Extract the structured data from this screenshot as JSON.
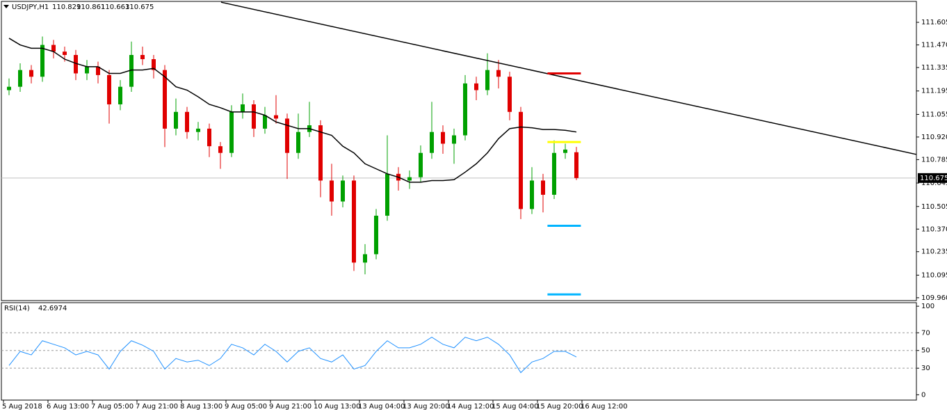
{
  "chart_data": {
    "type": "candlestick",
    "title": "USDJPY,H1",
    "up_color": "#00a000",
    "down_color": "#e00000",
    "candles": [
      [
        111.2,
        111.27,
        111.17,
        111.22
      ],
      [
        111.22,
        111.36,
        111.19,
        111.32
      ],
      [
        111.32,
        111.35,
        111.24,
        111.28
      ],
      [
        111.28,
        111.52,
        111.25,
        111.47
      ],
      [
        111.47,
        111.5,
        111.39,
        111.43
      ],
      [
        111.43,
        111.46,
        111.37,
        111.41
      ],
      [
        111.41,
        111.44,
        111.26,
        111.3
      ],
      [
        111.3,
        111.38,
        111.26,
        111.34
      ],
      [
        111.34,
        111.37,
        111.24,
        111.29
      ],
      [
        111.29,
        111.32,
        111.0,
        111.115
      ],
      [
        111.115,
        111.26,
        111.08,
        111.22
      ],
      [
        111.22,
        111.49,
        111.19,
        111.41
      ],
      [
        111.41,
        111.46,
        111.35,
        111.385
      ],
      [
        111.385,
        111.41,
        111.27,
        111.32
      ],
      [
        111.32,
        111.35,
        110.86,
        110.97
      ],
      [
        110.97,
        111.15,
        110.93,
        111.07
      ],
      [
        111.07,
        111.1,
        110.91,
        110.95
      ],
      [
        110.95,
        111.01,
        110.9,
        110.97
      ],
      [
        110.97,
        111.0,
        110.8,
        110.865
      ],
      [
        110.865,
        110.89,
        110.73,
        110.825
      ],
      [
        110.825,
        111.11,
        110.8,
        111.07
      ],
      [
        111.07,
        111.18,
        111.03,
        111.115
      ],
      [
        111.115,
        111.14,
        110.92,
        110.97
      ],
      [
        110.97,
        111.1,
        110.94,
        111.05
      ],
      [
        111.05,
        111.17,
        111.0,
        111.03
      ],
      [
        111.03,
        111.06,
        110.67,
        110.825
      ],
      [
        110.825,
        111.06,
        110.79,
        110.95
      ],
      [
        110.95,
        111.13,
        110.92,
        110.99
      ],
      [
        110.99,
        111.02,
        110.56,
        110.66
      ],
      [
        110.66,
        110.76,
        110.45,
        110.535
      ],
      [
        110.535,
        110.69,
        110.5,
        110.66
      ],
      [
        110.66,
        110.69,
        110.12,
        110.17
      ],
      [
        110.17,
        110.28,
        110.1,
        110.22
      ],
      [
        110.22,
        110.49,
        110.19,
        110.45
      ],
      [
        110.45,
        110.93,
        110.42,
        110.7
      ],
      [
        110.7,
        110.74,
        110.6,
        110.66
      ],
      [
        110.66,
        110.72,
        110.61,
        110.68
      ],
      [
        110.68,
        110.87,
        110.65,
        110.825
      ],
      [
        110.825,
        111.13,
        110.79,
        110.95
      ],
      [
        110.95,
        110.99,
        110.82,
        110.88
      ],
      [
        110.88,
        110.97,
        110.76,
        110.93
      ],
      [
        110.93,
        111.29,
        110.9,
        111.24
      ],
      [
        111.24,
        111.28,
        111.14,
        111.2
      ],
      [
        111.2,
        111.42,
        111.17,
        111.32
      ],
      [
        111.32,
        111.38,
        111.21,
        111.28
      ],
      [
        111.28,
        111.31,
        111.02,
        111.07
      ],
      [
        111.07,
        111.1,
        110.43,
        110.49
      ],
      [
        110.49,
        110.74,
        110.46,
        110.66
      ],
      [
        110.66,
        110.7,
        110.47,
        110.575
      ],
      [
        110.575,
        110.9,
        110.55,
        110.825
      ],
      [
        110.825,
        110.88,
        110.79,
        110.845
      ],
      [
        110.829,
        110.861,
        110.663,
        110.675
      ]
    ],
    "ma": {
      "color": "#000000",
      "values": [
        111.51,
        111.47,
        111.45,
        111.45,
        111.43,
        111.385,
        111.36,
        111.34,
        111.34,
        111.3,
        111.3,
        111.32,
        111.32,
        111.33,
        111.28,
        111.22,
        111.2,
        111.16,
        111.115,
        111.095,
        111.07,
        111.07,
        111.07,
        111.05,
        111.01,
        110.99,
        110.97,
        110.97,
        110.95,
        110.93,
        110.865,
        110.825,
        110.76,
        110.73,
        110.7,
        110.68,
        110.65,
        110.65,
        110.66,
        110.66,
        110.665,
        110.71,
        110.76,
        110.825,
        110.91,
        110.97,
        110.98,
        110.975,
        110.965,
        110.965,
        110.96,
        110.95
      ]
    },
    "trendline": {
      "color": "#000000",
      "start": [
        19.56,
        111.725
      ],
      "end": [
        82.19,
        110.816
      ]
    },
    "levels": [
      {
        "value": 111.3,
        "color": "#e00000"
      },
      {
        "value": 110.89,
        "color": "#ffff00"
      },
      {
        "value": 110.39,
        "color": "#00b4ff"
      },
      {
        "value": 109.98,
        "color": "#00b4ff"
      }
    ],
    "ylim": [
      109.943,
      111.73
    ],
    "yticks": [
      {
        "value": 111.605,
        "label": "111.605"
      },
      {
        "value": 111.47,
        "label": "111.470"
      },
      {
        "value": 111.335,
        "label": "111.335"
      },
      {
        "value": 111.195,
        "label": "111.195"
      },
      {
        "value": 111.055,
        "label": "111.055"
      },
      {
        "value": 110.92,
        "label": "110.920"
      },
      {
        "value": 110.785,
        "label": "110.785"
      },
      {
        "value": 110.645,
        "label": "110.645"
      },
      {
        "value": 110.505,
        "label": "110.505"
      },
      {
        "value": 110.37,
        "label": "110.370"
      },
      {
        "value": 110.235,
        "label": "110.235"
      },
      {
        "value": 110.095,
        "label": "110.095"
      },
      {
        "value": 109.96,
        "label": "109.960"
      }
    ],
    "xlim": [
      0,
      82
    ],
    "xticks": [
      {
        "value": 0,
        "label": "5 Aug 2018"
      },
      {
        "value": 4,
        "label": "6 Aug 13:00"
      },
      {
        "value": 8,
        "label": "7 Aug 05:00"
      },
      {
        "value": 12,
        "label": "7 Aug 21:00"
      },
      {
        "value": 16,
        "label": "8 Aug 13:00"
      },
      {
        "value": 20,
        "label": "9 Aug 05:00"
      },
      {
        "value": 24,
        "label": "9 Aug 21:00"
      },
      {
        "value": 28,
        "label": "10 Aug 13:00"
      },
      {
        "value": 32,
        "label": "13 Aug 04:00"
      },
      {
        "value": 36,
        "label": "13 Aug 20:00"
      },
      {
        "value": 40,
        "label": "14 Aug 12:00"
      },
      {
        "value": 44,
        "label": "15 Aug 04:00"
      },
      {
        "value": 48,
        "label": "15 Aug 20:00"
      },
      {
        "value": 52,
        "label": "16 Aug 12:00"
      }
    ],
    "rsi": {
      "title": "RSI(14)",
      "color": "#1e90ff",
      "ylim": [
        -6,
        104
      ],
      "yticks": [
        0,
        30,
        50,
        70,
        100
      ],
      "levels": [
        30,
        50,
        70
      ],
      "values": [
        33,
        49,
        45,
        61,
        57,
        53,
        45,
        49,
        45,
        29,
        49,
        61,
        56,
        49,
        29,
        41,
        37,
        39,
        33,
        41,
        57,
        53,
        45,
        57,
        49,
        37,
        49,
        53,
        41,
        37,
        45,
        29,
        33,
        49,
        61,
        53,
        53,
        57,
        65,
        57,
        53,
        65,
        61,
        65,
        57,
        45,
        25,
        37,
        41,
        49,
        49,
        42.6974
      ]
    }
  }
}
